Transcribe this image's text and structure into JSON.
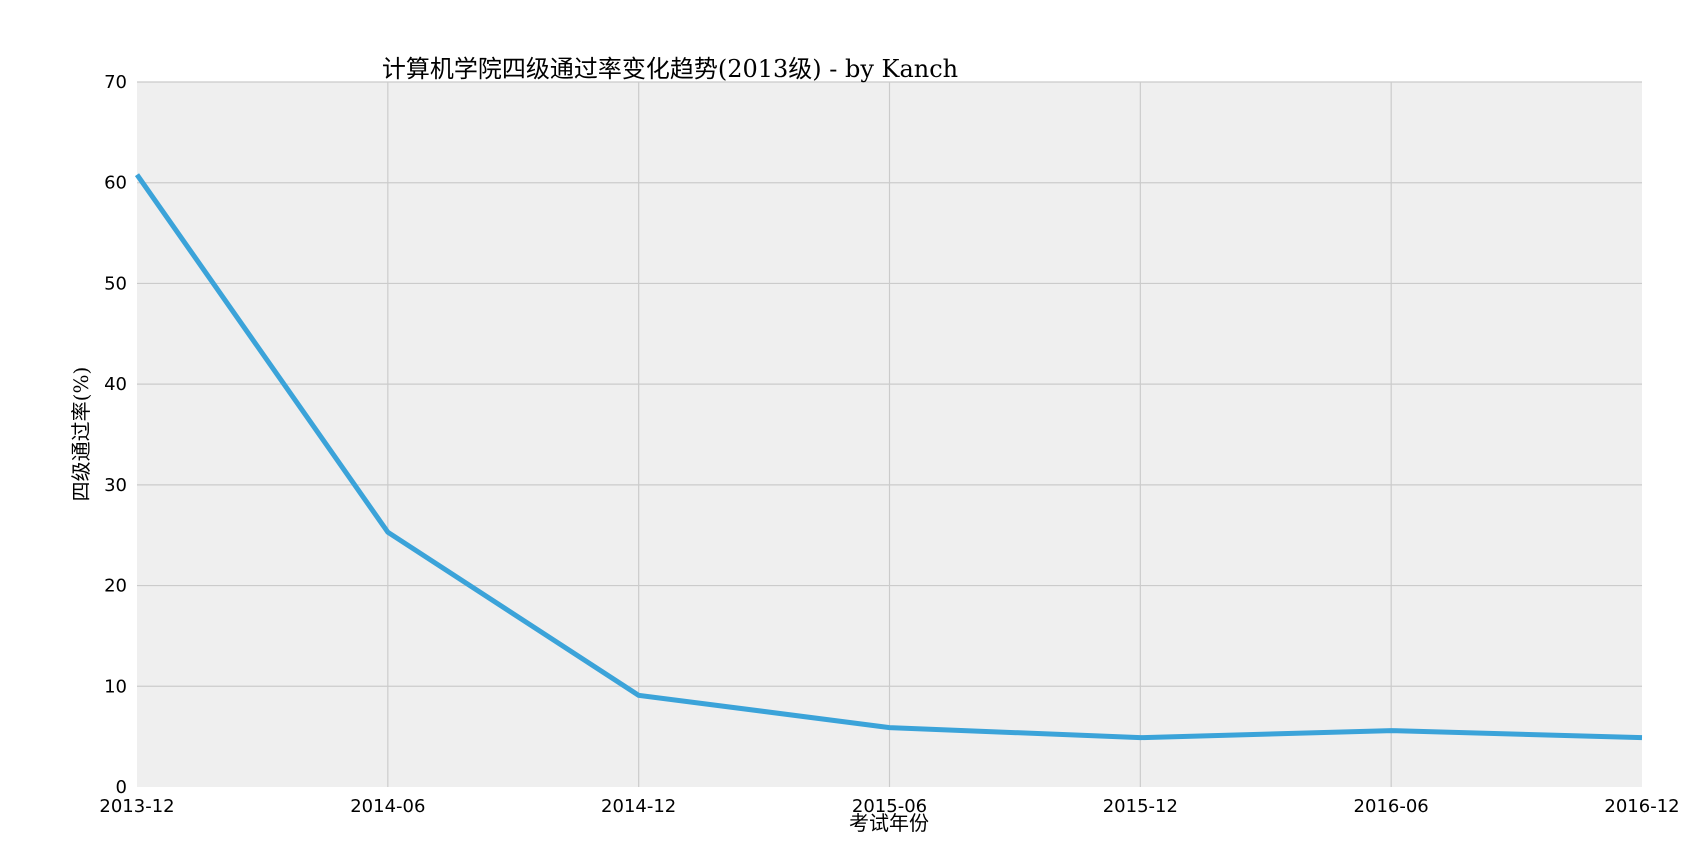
{
  "chart_data": {
    "type": "line",
    "title": "计算机学院四级通过率变化趋势(2013级) - by Kanch",
    "xlabel": "考试年份",
    "ylabel": "四级通过率(%)",
    "categories": [
      "2013-12",
      "2014-06",
      "2014-12",
      "2015-06",
      "2015-12",
      "2016-06",
      "2016-12"
    ],
    "series": [
      {
        "name": "四级通过率",
        "values": [
          60.8,
          25.3,
          9.1,
          5.9,
          4.9,
          5.6,
          4.9
        ]
      }
    ],
    "ylim": [
      0,
      70
    ],
    "yticks": [
      "0",
      "10",
      "20",
      "30",
      "40",
      "50",
      "60",
      "70"
    ],
    "grid": true,
    "colors": {
      "line": "#3ba3d9",
      "plot_background": "#efefef",
      "grid": "#cbcbcb"
    }
  }
}
